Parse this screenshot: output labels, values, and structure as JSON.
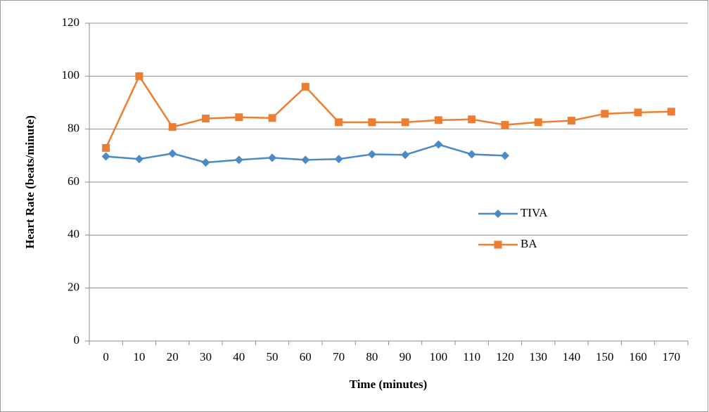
{
  "chart_data": {
    "type": "line",
    "x_label": "Time (minutes)",
    "y_label": "Heart Rate (beats/minute)",
    "categories": [
      "0",
      "10",
      "20",
      "30",
      "40",
      "50",
      "60",
      "70",
      "80",
      "90",
      "100",
      "110",
      "120",
      "130",
      "140",
      "150",
      "160",
      "170"
    ],
    "series": [
      {
        "name": "TIVA",
        "color": "#4a8ac6",
        "marker": "diamond",
        "values": [
          69.7,
          68.7,
          70.8,
          67.4,
          68.4,
          69.2,
          68.4,
          68.7,
          70.5,
          70.3,
          74.2,
          70.5,
          70,
          null,
          null,
          null,
          null,
          null
        ]
      },
      {
        "name": "BA",
        "color": "#ed7d31",
        "marker": "square",
        "values": [
          72.9,
          100,
          80.8,
          84,
          84.5,
          84.2,
          96,
          82.6,
          82.6,
          82.6,
          83.4,
          83.7,
          81.6,
          82.6,
          83.2,
          85.8,
          86.3,
          86.6
        ]
      }
    ],
    "ylim": [
      0,
      120
    ],
    "yticks": [
      0,
      20,
      40,
      60,
      80,
      100,
      120
    ],
    "grid": true
  }
}
